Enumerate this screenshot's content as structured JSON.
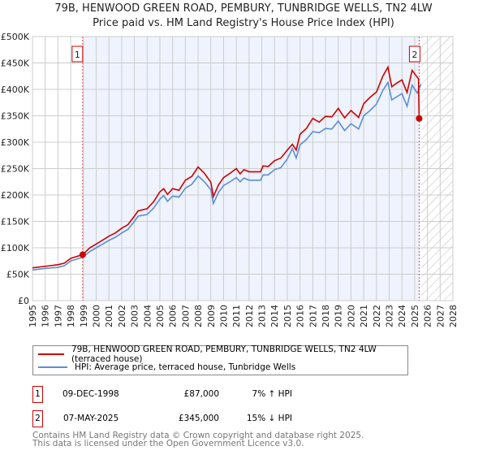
{
  "chart_data": {
    "type": "line",
    "title": "79B, HENWOOD GREEN ROAD, PEMBURY, TUNBRIDGE WELLS, TN2 4LW",
    "subtitle": "Price paid vs. HM Land Registry's House Price Index (HPI)",
    "xlim": [
      1995,
      2028
    ],
    "ylim": [
      0,
      500000
    ],
    "x_ticks": [
      "1995",
      "1996",
      "1997",
      "1998",
      "1999",
      "2000",
      "2001",
      "2002",
      "2003",
      "2004",
      "2005",
      "2006",
      "2007",
      "2008",
      "2009",
      "2010",
      "2011",
      "2012",
      "2013",
      "2014",
      "2015",
      "2016",
      "2017",
      "2018",
      "2019",
      "2020",
      "2021",
      "2022",
      "2023",
      "2024",
      "2025",
      "2026",
      "2027",
      "2028"
    ],
    "y_ticks": [
      {
        "v": 0,
        "label": "£0"
      },
      {
        "v": 50000,
        "label": "£50K"
      },
      {
        "v": 100000,
        "label": "£100K"
      },
      {
        "v": 150000,
        "label": "£150K"
      },
      {
        "v": 200000,
        "label": "£200K"
      },
      {
        "v": 250000,
        "label": "£250K"
      },
      {
        "v": 300000,
        "label": "£300K"
      },
      {
        "v": 350000,
        "label": "£350K"
      },
      {
        "v": 400000,
        "label": "£400K"
      },
      {
        "v": 450000,
        "label": "£450K"
      },
      {
        "v": 500000,
        "label": "£500K"
      }
    ],
    "grid": true,
    "shaded_range": [
      1998.94,
      2025.35
    ],
    "hatched_range": [
      2025.5,
      2028
    ],
    "series": [
      {
        "name": "79B, HENWOOD GREEN ROAD, PEMBURY, TUNBRIDGE WELLS, TN2 4LW (terraced house)",
        "color": "#cc0000",
        "points": [
          [
            1995,
            62
          ],
          [
            1996,
            65
          ],
          [
            1997,
            68
          ],
          [
            1997.5,
            71
          ],
          [
            1998,
            80
          ],
          [
            1998.94,
            87
          ],
          [
            1999.5,
            100
          ],
          [
            2000,
            107
          ],
          [
            2001,
            122
          ],
          [
            2001.5,
            128
          ],
          [
            2002,
            137
          ],
          [
            2002.5,
            144
          ],
          [
            2003,
            160
          ],
          [
            2003.3,
            170
          ],
          [
            2004,
            174
          ],
          [
            2004.5,
            187
          ],
          [
            2005,
            206
          ],
          [
            2005.3,
            212
          ],
          [
            2005.6,
            201
          ],
          [
            2006,
            212
          ],
          [
            2006.5,
            209
          ],
          [
            2007,
            228
          ],
          [
            2007.5,
            235
          ],
          [
            2008,
            253
          ],
          [
            2008.5,
            241
          ],
          [
            2009,
            224
          ],
          [
            2009.2,
            197
          ],
          [
            2009.6,
            219
          ],
          [
            2010,
            233
          ],
          [
            2010.5,
            241
          ],
          [
            2011,
            250
          ],
          [
            2011.3,
            240
          ],
          [
            2011.6,
            248
          ],
          [
            2012,
            244
          ],
          [
            2012.9,
            244
          ],
          [
            2013.1,
            255
          ],
          [
            2013.5,
            254
          ],
          [
            2014,
            265
          ],
          [
            2014.5,
            270
          ],
          [
            2015,
            285
          ],
          [
            2015.4,
            296
          ],
          [
            2015.7,
            285
          ],
          [
            2016,
            315
          ],
          [
            2016.5,
            326
          ],
          [
            2017,
            345
          ],
          [
            2017.5,
            338
          ],
          [
            2018,
            349
          ],
          [
            2018.5,
            348
          ],
          [
            2019,
            364
          ],
          [
            2019.5,
            346
          ],
          [
            2020,
            360
          ],
          [
            2020.6,
            347
          ],
          [
            2021,
            373
          ],
          [
            2021.5,
            385
          ],
          [
            2022,
            395
          ],
          [
            2022.5,
            425
          ],
          [
            2022.9,
            442
          ],
          [
            2023.2,
            405
          ],
          [
            2023.6,
            412
          ],
          [
            2024,
            418
          ],
          [
            2024.4,
            394
          ],
          [
            2024.8,
            436
          ],
          [
            2025.2,
            423
          ],
          [
            2025.3,
            420
          ],
          [
            2025.35,
            345
          ]
        ]
      },
      {
        "name": "HPI: Average price, terraced house, Tunbridge Wells",
        "color": "#5b8fd4",
        "points": [
          [
            1995,
            58
          ],
          [
            1996,
            61
          ],
          [
            1997,
            63
          ],
          [
            1997.5,
            66
          ],
          [
            1998,
            75
          ],
          [
            1998.94,
            82
          ],
          [
            1999.5,
            93
          ],
          [
            2000,
            100
          ],
          [
            2001,
            114
          ],
          [
            2001.5,
            120
          ],
          [
            2002,
            128
          ],
          [
            2002.5,
            135
          ],
          [
            2003,
            150
          ],
          [
            2003.3,
            160
          ],
          [
            2004,
            163
          ],
          [
            2004.5,
            175
          ],
          [
            2005,
            192
          ],
          [
            2005.3,
            199
          ],
          [
            2005.6,
            188
          ],
          [
            2006,
            198
          ],
          [
            2006.5,
            196
          ],
          [
            2007,
            213
          ],
          [
            2007.5,
            220
          ],
          [
            2008,
            236
          ],
          [
            2008.5,
            225
          ],
          [
            2009,
            210
          ],
          [
            2009.2,
            184
          ],
          [
            2009.6,
            205
          ],
          [
            2010,
            218
          ],
          [
            2010.5,
            225
          ],
          [
            2011,
            233
          ],
          [
            2011.3,
            225
          ],
          [
            2011.6,
            232
          ],
          [
            2012,
            228
          ],
          [
            2012.9,
            228
          ],
          [
            2013.1,
            238
          ],
          [
            2013.5,
            238
          ],
          [
            2014,
            248
          ],
          [
            2014.5,
            252
          ],
          [
            2015,
            268
          ],
          [
            2015.4,
            288
          ],
          [
            2015.7,
            270
          ],
          [
            2016,
            295
          ],
          [
            2016.5,
            305
          ],
          [
            2017,
            320
          ],
          [
            2017.5,
            318
          ],
          [
            2018,
            326
          ],
          [
            2018.5,
            325
          ],
          [
            2019,
            340
          ],
          [
            2019.5,
            322
          ],
          [
            2020,
            335
          ],
          [
            2020.6,
            325
          ],
          [
            2021,
            350
          ],
          [
            2021.5,
            360
          ],
          [
            2022,
            372
          ],
          [
            2022.5,
            398
          ],
          [
            2022.9,
            413
          ],
          [
            2023.2,
            380
          ],
          [
            2023.6,
            386
          ],
          [
            2024,
            392
          ],
          [
            2024.4,
            368
          ],
          [
            2024.8,
            408
          ],
          [
            2025.2,
            393
          ],
          [
            2025.5,
            410
          ]
        ]
      }
    ],
    "annotations": [
      {
        "label": "1",
        "x": 1998.94,
        "y": 87000
      },
      {
        "label": "2",
        "x": 2025.35,
        "y": 345000
      }
    ]
  },
  "legend": {
    "red": "79B, HENWOOD GREEN ROAD, PEMBURY, TUNBRIDGE WELLS, TN2 4LW (terraced house)",
    "blue": "HPI: Average price, terraced house, Tunbridge Wells"
  },
  "transactions": [
    {
      "n": "1",
      "date": "09-DEC-1998",
      "price": "£87,000",
      "hpi": "7% ↑ HPI"
    },
    {
      "n": "2",
      "date": "07-MAY-2025",
      "price": "£345,000",
      "hpi": "15% ↓ HPI"
    }
  ],
  "footer": [
    "Contains HM Land Registry data © Crown copyright and database right 2025.",
    "This data is licensed under the Open Government Licence v3.0."
  ]
}
